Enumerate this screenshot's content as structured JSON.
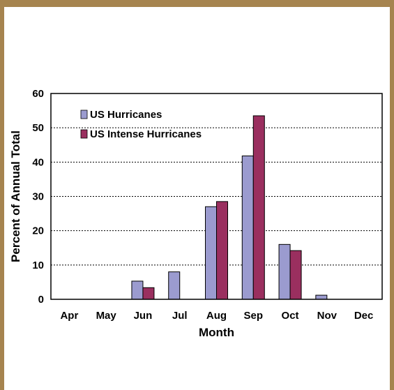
{
  "chart_data": {
    "type": "bar",
    "categories": [
      "Apr",
      "May",
      "Jun",
      "Jul",
      "Aug",
      "Sep",
      "Oct",
      "Nov",
      "Dec"
    ],
    "series": [
      {
        "name": "US Hurricanes",
        "color": "#9b9bcf",
        "values": [
          0,
          0,
          5.3,
          8,
          27,
          41.8,
          16,
          1.2,
          0
        ]
      },
      {
        "name": "US Intense Hurricanes",
        "color": "#9a2f5f",
        "values": [
          0,
          0,
          3.4,
          0,
          28.5,
          53.5,
          14.2,
          0,
          0
        ]
      }
    ],
    "xlabel": "Month",
    "ylabel": "Percent of Annual Total",
    "ylim": [
      0,
      60
    ],
    "yticks": [
      0,
      10,
      20,
      30,
      40,
      50,
      60
    ],
    "grid": true,
    "legend_position": "top-left"
  }
}
